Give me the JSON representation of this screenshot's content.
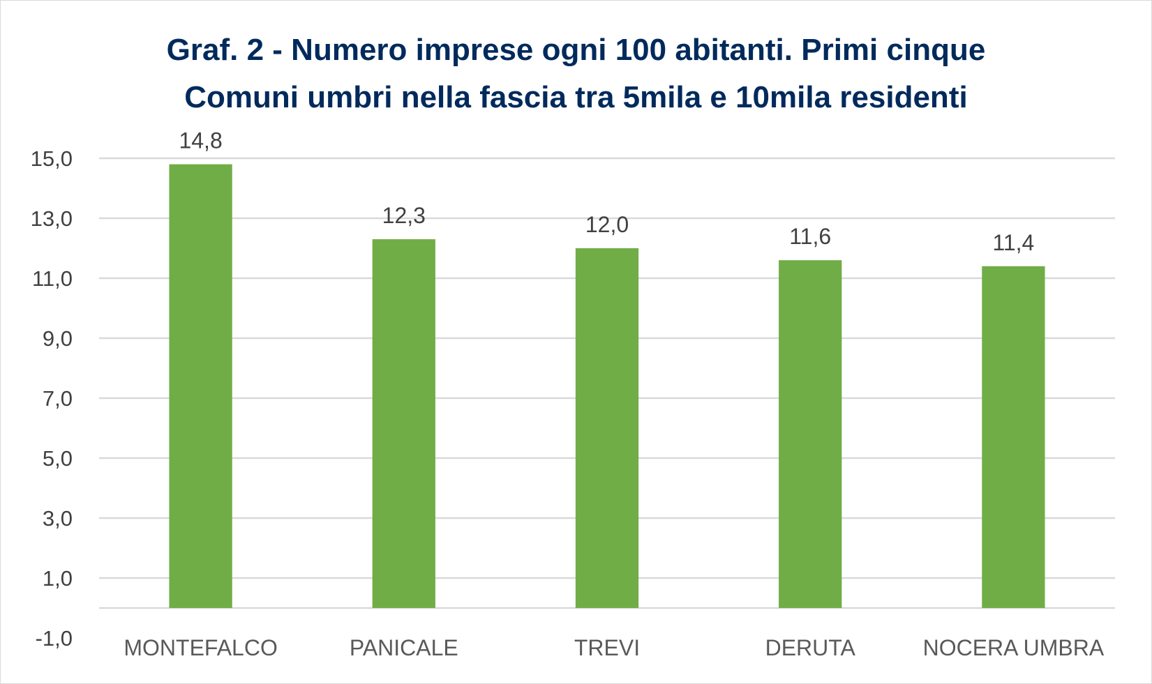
{
  "chart_data": {
    "type": "bar",
    "title_line1": "Graf. 2 - Numero imprese ogni 100 abitanti. Primi cinque",
    "title_line2": "Comuni umbri nella fascia tra 5mila e 10mila residenti",
    "categories": [
      "MONTEFALCO",
      "PANICALE",
      "TREVI",
      "DERUTA",
      "NOCERA UMBRA"
    ],
    "values": [
      14.8,
      12.3,
      12.0,
      11.6,
      11.4
    ],
    "value_labels": [
      "14,8",
      "12,3",
      "12,0",
      "11,6",
      "11,4"
    ],
    "yticks": [
      -1,
      1,
      3,
      5,
      7,
      9,
      11,
      13,
      15
    ],
    "ytick_labels": [
      "-1,0",
      "1,0",
      "3,0",
      "5,0",
      "7,0",
      "9,0",
      "11,0",
      "13,0",
      "15,0"
    ],
    "ylim": [
      -1,
      15
    ],
    "xlabel": "",
    "ylabel": "",
    "grid": true,
    "legend": "none",
    "bar_color": "#70ad47",
    "grid_color": "#d9d9d9",
    "title_color": "#002a5c"
  }
}
